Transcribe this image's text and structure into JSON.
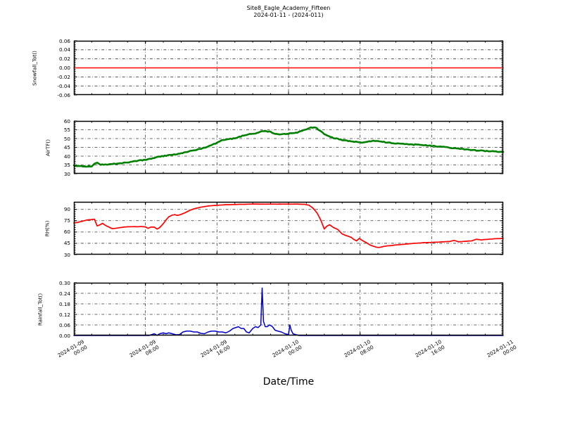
{
  "chart_data": {
    "type": "line",
    "title": "Site8_Eagle_Academy_Fifteen",
    "subtitle": "2024-01-11 - (2024-011)",
    "xlabel": "Date/Time",
    "grid": "dash-dot",
    "legend": "none",
    "x_unit": "hours since 2024-01-09 00:00",
    "x_range": [
      0,
      48
    ],
    "x_minor_step": 2,
    "x_ticks": [
      0,
      8,
      16,
      24,
      32,
      40,
      48
    ],
    "x_tick_labels": [
      [
        "2024-01-09",
        "00:00"
      ],
      [
        "2024-01-09",
        "08:00"
      ],
      [
        "2024-01-09",
        "16:00"
      ],
      [
        "2024-01-10",
        "00:00"
      ],
      [
        "2024-01-10",
        "08:00"
      ],
      [
        "2024-01-10",
        "16:00"
      ],
      [
        "2024-01-11",
        "00:00"
      ]
    ],
    "panels": [
      {
        "id": "snowfall",
        "ylabel": "Snowfall_Tot()",
        "ylim": [
          -0.06,
          0.06
        ],
        "yticks": [
          -0.06,
          -0.04,
          -0.02,
          0,
          0.02,
          0.04,
          0.06
        ],
        "ytick_labels": [
          "-0.06",
          "-0.04",
          "-0.02",
          "0.00",
          "0.02",
          "0.04",
          "0.06"
        ],
        "y_minor_step": 0.004,
        "color": "#ff0000",
        "line_width": 1.4,
        "noise": 0,
        "x": [
          0,
          48
        ],
        "y": [
          0,
          0
        ]
      },
      {
        "id": "airtf",
        "ylabel": "AirTF()",
        "ylim": [
          30,
          60
        ],
        "yticks": [
          30,
          35,
          40,
          45,
          50,
          55,
          60
        ],
        "ytick_labels": [
          "30",
          "35",
          "40",
          "45",
          "50",
          "55",
          "60"
        ],
        "y_minor_step": 1,
        "color": "#008000",
        "line_width": 2.6,
        "noise": 0.22,
        "x": [
          0,
          0.5,
          1,
          1.5,
          2,
          2.3,
          2.6,
          3,
          3.5,
          4,
          4.5,
          5,
          5.5,
          6,
          6.5,
          7,
          7.5,
          8,
          8.5,
          9,
          9.5,
          10,
          10.5,
          11,
          11.5,
          12,
          12.5,
          13,
          13.5,
          14,
          14.5,
          15,
          15.5,
          16,
          16.5,
          17,
          17.5,
          18,
          18.5,
          19,
          19.5,
          20,
          20.5,
          21,
          21.5,
          22,
          22.5,
          23,
          23.5,
          24,
          24.5,
          25,
          25.5,
          26,
          26.5,
          27,
          27.5,
          28,
          28.5,
          29,
          29.5,
          30,
          31,
          32,
          33,
          33.5,
          34,
          35,
          36,
          37,
          38,
          38.5,
          39,
          40,
          41,
          42,
          43,
          44,
          45,
          46,
          47,
          48
        ],
        "y": [
          34.8,
          34.4,
          34.2,
          34.1,
          34.3,
          35.9,
          36.2,
          35.1,
          35.2,
          35.4,
          35.6,
          35.9,
          36.1,
          36.4,
          36.8,
          37.3,
          37.6,
          38.0,
          38.5,
          39.0,
          39.6,
          40.1,
          40.4,
          40.7,
          41.0,
          41.5,
          42.2,
          42.9,
          43.4,
          44.0,
          44.7,
          45.5,
          46.5,
          47.5,
          48.9,
          49.5,
          49.8,
          50.1,
          50.9,
          51.8,
          52.4,
          52.7,
          53.2,
          54.0,
          54.2,
          53.8,
          52.6,
          52.3,
          52.6,
          52.8,
          53.1,
          53.5,
          54.3,
          55.4,
          56.2,
          56.3,
          54.5,
          52.4,
          51.2,
          50.4,
          49.8,
          49.2,
          48.4,
          47.7,
          48.4,
          48.8,
          48.5,
          47.8,
          47.3,
          46.9,
          46.5,
          46.8,
          46.3,
          45.8,
          45.4,
          44.8,
          44.3,
          43.8,
          43.3,
          42.9,
          42.6,
          42.4
        ]
      },
      {
        "id": "rh",
        "ylabel": "RH(%)",
        "ylim": [
          30,
          100
        ],
        "yticks": [
          30,
          45,
          60,
          75,
          90
        ],
        "ytick_labels": [
          "30",
          "45",
          "60",
          "75",
          "90"
        ],
        "y_minor_step": 3,
        "color": "#ff0000",
        "line_width": 1.7,
        "noise": 0.12,
        "x": [
          0,
          0.5,
          1,
          1.5,
          2,
          2.3,
          2.6,
          3,
          3.2,
          3.5,
          4,
          4.3,
          4.6,
          5,
          5.5,
          6,
          6.5,
          7,
          7.5,
          8,
          8.3,
          8.6,
          9,
          9.3,
          9.6,
          10,
          10.3,
          10.6,
          11,
          11.3,
          11.6,
          12,
          12.5,
          13,
          13.5,
          14,
          14.5,
          15,
          16,
          17,
          18,
          19,
          20,
          21,
          22,
          23,
          24,
          25,
          25.8,
          26.3,
          26.8,
          27.2,
          27.6,
          28,
          28.3,
          28.6,
          29,
          29.5,
          30,
          30.5,
          31,
          31.3,
          31.6,
          31.9,
          32.3,
          32.7,
          33.1,
          33.5,
          33.8,
          34.2,
          34.6,
          35,
          35.5,
          36,
          36.5,
          37,
          38,
          39,
          40,
          41,
          42,
          42.5,
          43,
          43.5,
          44,
          44.5,
          45,
          45.5,
          46,
          47,
          48
        ],
        "y": [
          72,
          73,
          74.5,
          76,
          76.5,
          77,
          68,
          70,
          71.5,
          69,
          66,
          64.5,
          64.8,
          65.5,
          66.5,
          67,
          67,
          67,
          67.2,
          66.8,
          65,
          66.5,
          66.5,
          63.8,
          66,
          71,
          76,
          80,
          82.5,
          83,
          82,
          83.5,
          86,
          89,
          91,
          92.5,
          93.5,
          94.5,
          95.5,
          96.2,
          96.5,
          96.8,
          97,
          97,
          97,
          97,
          97,
          97,
          96.8,
          95.5,
          91,
          85,
          76,
          64,
          68,
          69.5,
          66,
          63.5,
          57.5,
          55,
          53,
          50,
          48.3,
          51.5,
          48.5,
          45.9,
          42.9,
          41,
          39.8,
          39.5,
          40.8,
          41.5,
          42,
          42.8,
          43.3,
          43.8,
          45,
          45.8,
          46.2,
          46.8,
          47.4,
          48.8,
          47,
          47.5,
          47.8,
          48.3,
          50.5,
          49.5,
          50,
          51,
          51.5
        ]
      },
      {
        "id": "rainfall",
        "ylabel": "Rainfall_Tot()",
        "ylim": [
          0,
          0.3
        ],
        "yticks": [
          0,
          0.06,
          0.12,
          0.18,
          0.24,
          0.3
        ],
        "ytick_labels": [
          "0.00",
          "0.06",
          "0.12",
          "0.18",
          "0.24",
          "0.30"
        ],
        "y_minor_step": 0.01,
        "color": "#0000cc",
        "line_width": 1.5,
        "noise": 0,
        "x": [
          0,
          8.4,
          8.7,
          9,
          9.3,
          9.6,
          10,
          10.3,
          10.6,
          11,
          11.4,
          11.8,
          12.2,
          12.6,
          13,
          13.4,
          13.8,
          14.2,
          14.6,
          15,
          15.4,
          15.8,
          16.2,
          16.6,
          17,
          17.4,
          17.8,
          18.1,
          18.4,
          18.7,
          19,
          19.3,
          19.6,
          20,
          20.3,
          20.6,
          20.9,
          21.05,
          21.2,
          21.4,
          21.6,
          21.9,
          22.2,
          22.5,
          22.8,
          23.2,
          23.6,
          24,
          24.15,
          24.3,
          24.5,
          24.8,
          25.2,
          26,
          48
        ],
        "y": [
          0,
          0,
          0.005,
          0.01,
          0.001,
          0.01,
          0.015,
          0.01,
          0.015,
          0.01,
          0.004,
          0.005,
          0.02,
          0.025,
          0.025,
          0.02,
          0.02,
          0.012,
          0.01,
          0.02,
          0.025,
          0.025,
          0.02,
          0.02,
          0.015,
          0.025,
          0.04,
          0.045,
          0.05,
          0.04,
          0.04,
          0.02,
          0.015,
          0.04,
          0.05,
          0.045,
          0.06,
          0.27,
          0.08,
          0.05,
          0.05,
          0.06,
          0.05,
          0.03,
          0.025,
          0.02,
          0.01,
          0.005,
          0.06,
          0.03,
          0.01,
          0.005,
          0,
          0,
          0
        ]
      }
    ]
  }
}
